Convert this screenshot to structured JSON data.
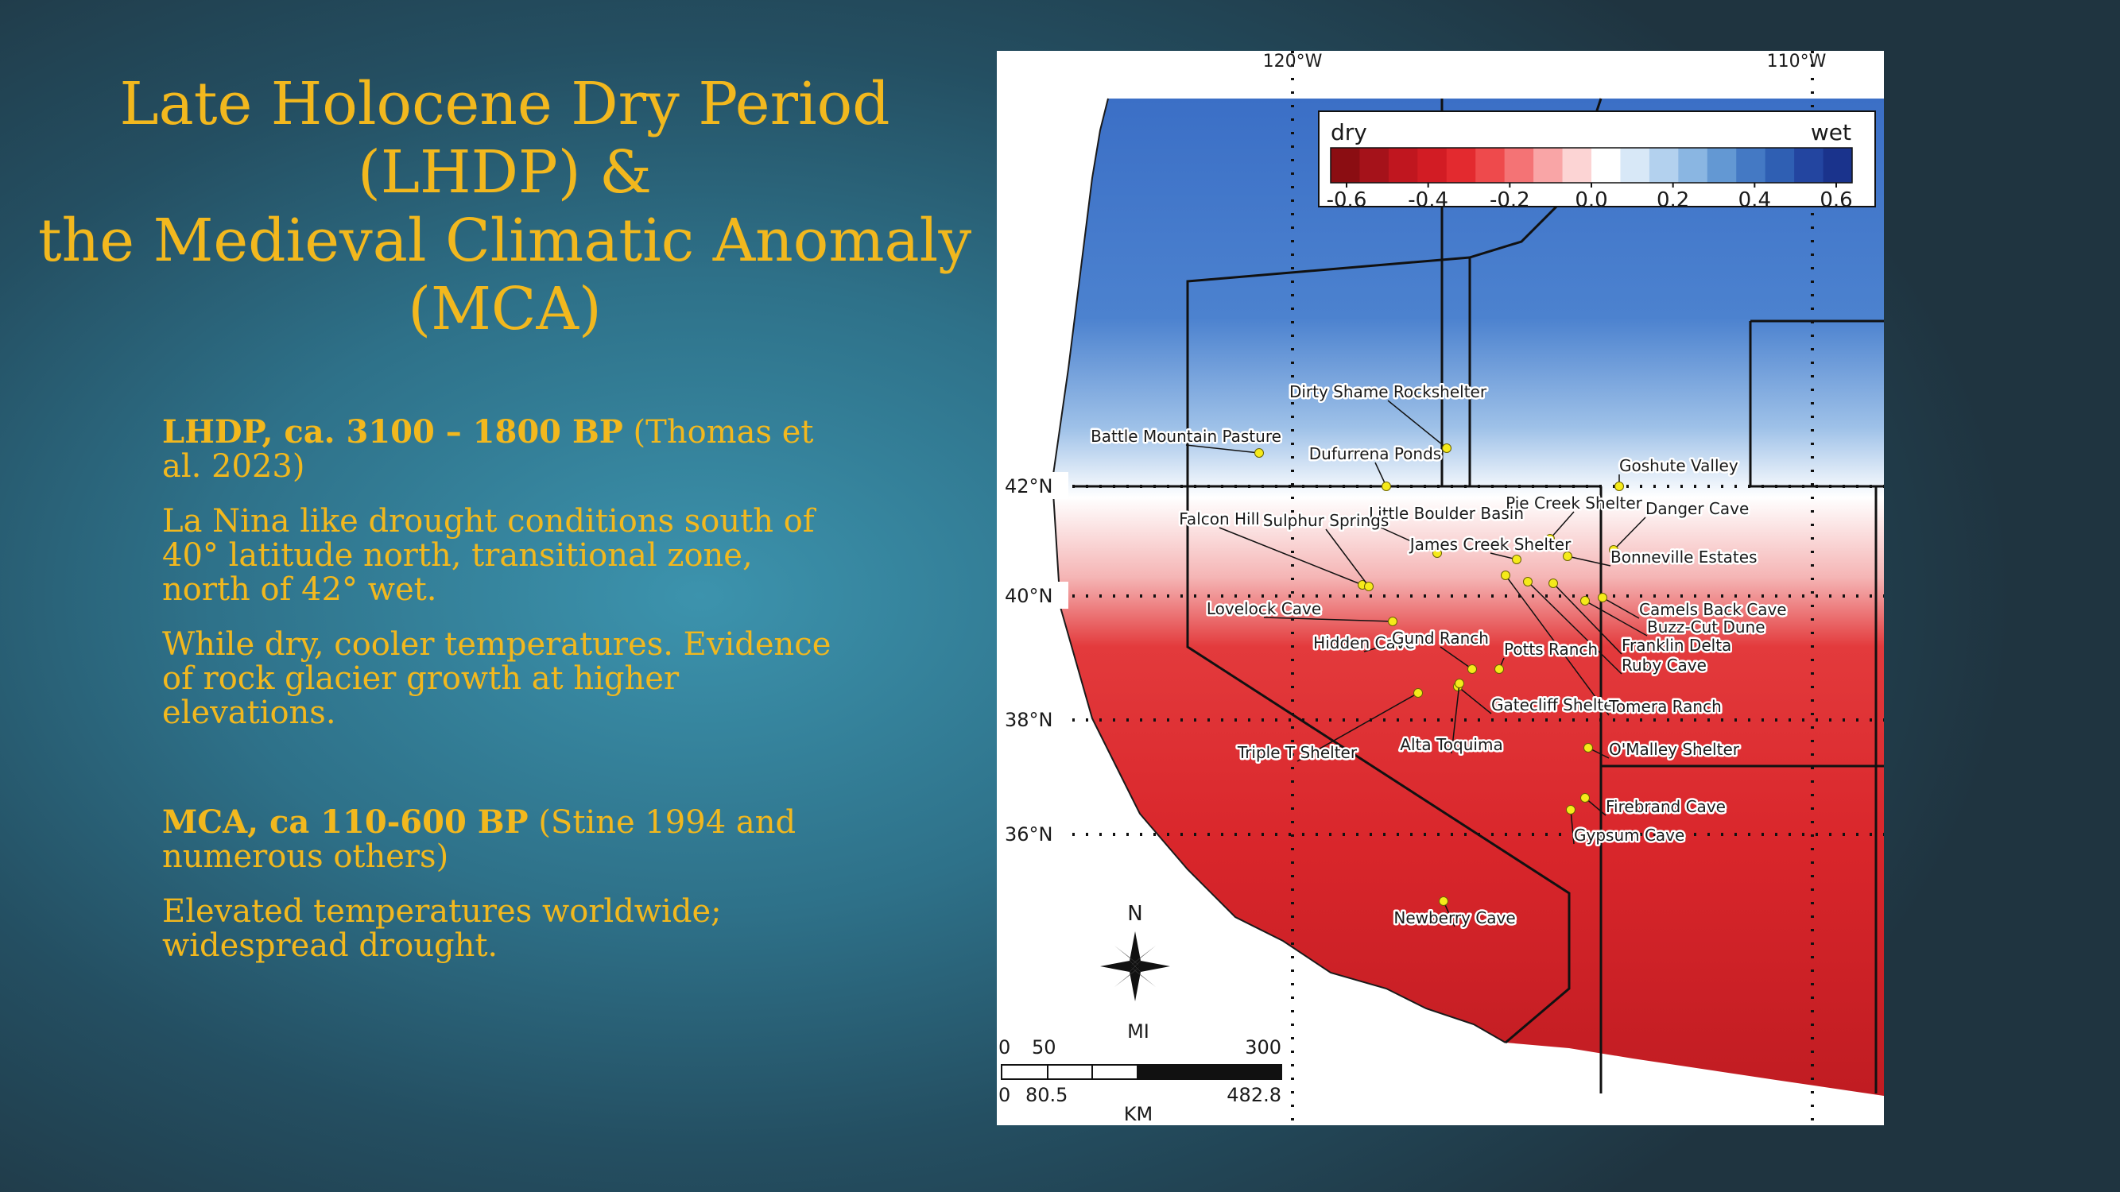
{
  "title": {
    "line1": "Late Holocene Dry Period",
    "line2": "(LHDP) &",
    "line3": "the Medieval Climatic Anomaly",
    "line4": "(MCA)"
  },
  "lhdp": {
    "heading": "LHDP, ca. 3100 – 1800 BP",
    "citation": " (Thomas et al. 2023)",
    "point1": "La Nina like drought conditions south of 40° latitude north, transitional zone, north of 42° wet.",
    "point2": "While dry, cooler temperatures. Evidence of rock glacier growth at higher elevations."
  },
  "mca": {
    "heading": "MCA, ca 110-600 BP",
    "citation": " (Stine 1994 and numerous others)",
    "point1": "Elevated temperatures worldwide; widespread drought."
  },
  "map": {
    "longitudes": [
      "120°W",
      "110°W"
    ],
    "latitudes": [
      "42°N",
      "40°N",
      "38°N",
      "36°N"
    ],
    "legend": {
      "dry_label": "dry",
      "wet_label": "wet",
      "ticks": [
        "-0.6",
        "-0.4",
        "-0.2",
        "0.0",
        "0.2",
        "0.4",
        "0.6"
      ],
      "colors": [
        "#8b0d12",
        "#a5121a",
        "#c0161f",
        "#d21c24",
        "#e32a2f",
        "#ee4a4c",
        "#f47375",
        "#f9a5a6",
        "#fcd4d4",
        "#ffffff",
        "#d8e8f7",
        "#b3d1ee",
        "#8ab6e2",
        "#6398d3",
        "#4479c4",
        "#2f5fb3",
        "#2345a0",
        "#1a338c"
      ]
    },
    "sites": [
      "Dirty Shame Rockshelter",
      "Battle Mountain Pasture",
      "Dufurrena Ponds",
      "Goshute Valley",
      "Falcon Hill",
      "Little Boulder Basin",
      "Pie Creek Shelter",
      "Danger Cave",
      "Sulphur Springs",
      "James Creek Shelter",
      "Bonneville Estates",
      "Lovelock Cave",
      "Camels Back Cave",
      "Buzz-Cut Dune",
      "Franklin Delta",
      "Hidden Cave",
      "Gund Ranch",
      "Potts Ranch",
      "Ruby Cave",
      "Gatecliff Shelter",
      "Tomera Ranch",
      "Triple T Shelter",
      "Alta Toquima",
      "O'Malley Shelter",
      "Firebrand Cave",
      "Gypsum Cave",
      "Newberry Cave"
    ],
    "compass_label": "N",
    "scale": {
      "mi_label": "MI",
      "km_label": "KM",
      "mi_ticks": [
        "0",
        "50",
        "300"
      ],
      "km_ticks": [
        "0",
        "80.5",
        "482.8"
      ]
    }
  }
}
